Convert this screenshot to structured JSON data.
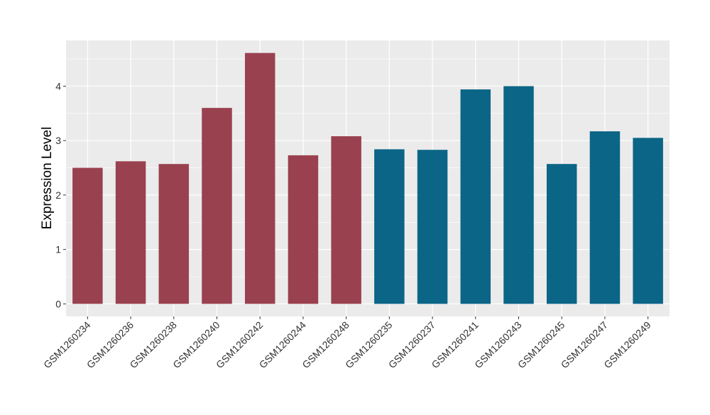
{
  "chart_data": {
    "type": "bar",
    "title": "",
    "xlabel": "",
    "ylabel": "Expression Level",
    "ylim": [
      -0.23,
      4.84
    ],
    "yticks": [
      0,
      1,
      2,
      3,
      4
    ],
    "grid": true,
    "categories": [
      "GSM1260234",
      "GSM1260236",
      "GSM1260238",
      "GSM1260240",
      "GSM1260242",
      "GSM1260244",
      "GSM1260248",
      "GSM1260235",
      "GSM1260237",
      "GSM1260241",
      "GSM1260243",
      "GSM1260245",
      "GSM1260247",
      "GSM1260249"
    ],
    "values": [
      2.5,
      2.62,
      2.57,
      3.6,
      4.61,
      2.73,
      3.08,
      2.84,
      2.83,
      3.94,
      4.0,
      2.57,
      3.17,
      3.05
    ],
    "bar_colors": [
      "#9a4150",
      "#9a4150",
      "#9a4150",
      "#9a4150",
      "#9a4150",
      "#9a4150",
      "#9a4150",
      "#0b6586",
      "#0b6586",
      "#0b6586",
      "#0b6586",
      "#0b6586",
      "#0b6586",
      "#0b6586"
    ],
    "panel_background": "#ebebeb"
  }
}
